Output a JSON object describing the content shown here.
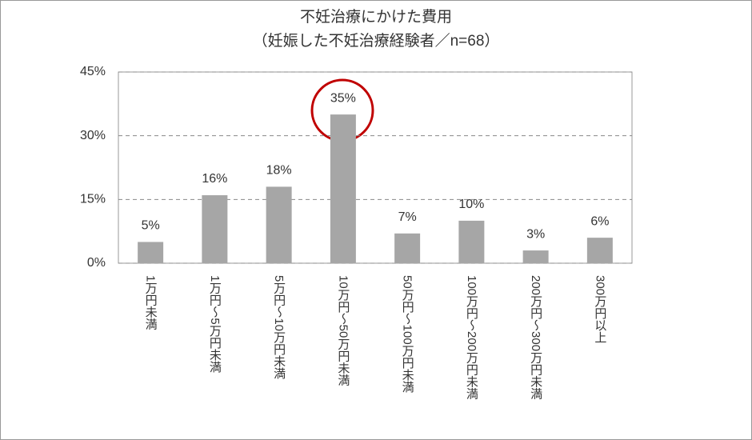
{
  "chart_data": {
    "type": "bar",
    "title": "不妊治療にかけた費用",
    "subtitle": "（妊娠した不妊治療経験者／n=68）",
    "categories": [
      "1万円未満",
      "1万円～5万円未満",
      "5万円～10万円未満",
      "10万円～50万円未満",
      "50万円～100万円未満",
      "100万円～200万円未満",
      "200万円～300万円未満",
      "300万円以上"
    ],
    "values": [
      5,
      16,
      18,
      35,
      7,
      10,
      3,
      6
    ],
    "value_labels": [
      "5%",
      "16%",
      "18%",
      "35%",
      "7%",
      "10%",
      "3%",
      "6%"
    ],
    "color": "#a6a6a6",
    "ylim": [
      0,
      45
    ],
    "yticks": [
      {
        "value": 0,
        "label": "0%"
      },
      {
        "value": 15,
        "label": "15%"
      },
      {
        "value": 30,
        "label": "30%"
      },
      {
        "value": 45,
        "label": "45%"
      }
    ],
    "grid": true
  }
}
